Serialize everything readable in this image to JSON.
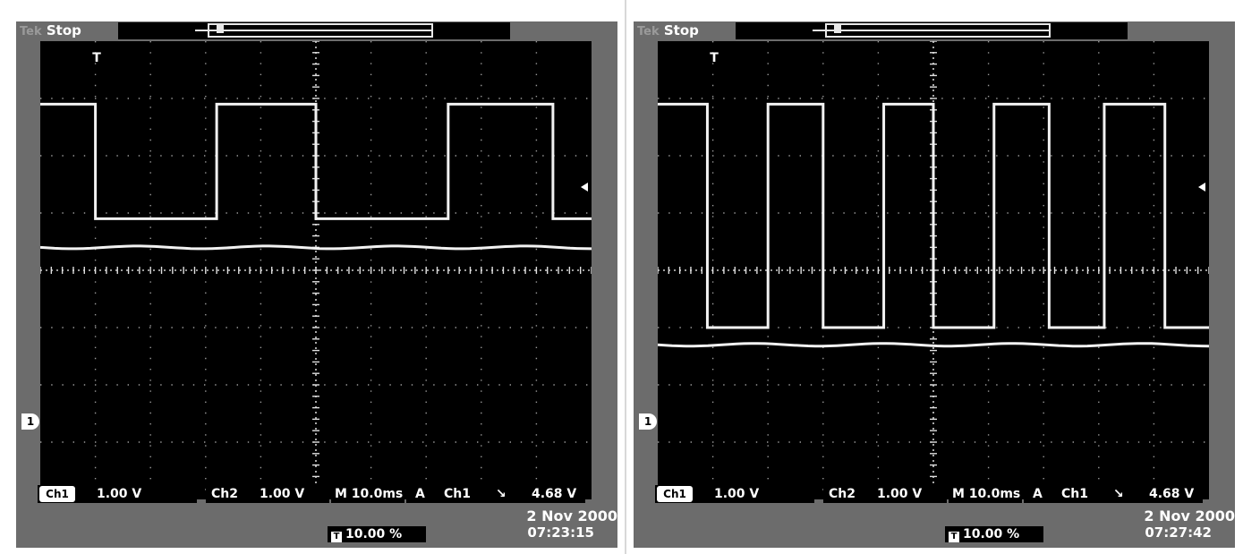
{
  "scopes": [
    {
      "brand": "Tek",
      "run_state": "Stop",
      "ch1_label": "Ch1",
      "ch1_scale": "1.00 V",
      "ch2_label": "Ch2",
      "ch2_scale": "1.00 V",
      "timebase": "M 10.0ms",
      "trigger_mode": "A",
      "trigger_source": "Ch1",
      "trigger_level": "4.68 V",
      "trigger_position": "10.00 %",
      "date": "2 Nov 2000",
      "time": "07:23:15",
      "ch1_marker": "1",
      "trigger_marker": "T",
      "ch1_edges": [
        1.0,
        3.2,
        5.0,
        7.4,
        9.3
      ],
      "ch1_high_div": 2.9,
      "ch1_low_div": 0.9,
      "ch2_level_div": 0.4
    },
    {
      "brand": "Tek",
      "run_state": "Stop",
      "ch1_label": "Ch1",
      "ch1_scale": "1.00 V",
      "ch2_label": "Ch2",
      "ch2_scale": "1.00 V",
      "timebase": "M 10.0ms",
      "trigger_mode": "A",
      "trigger_source": "Ch1",
      "trigger_level": "4.68 V",
      "trigger_position": "10.00 %",
      "date": "2 Nov 2000",
      "time": "07:27:42",
      "ch1_marker": "1",
      "trigger_marker": "T",
      "ch1_edges": [
        0.9,
        2.0,
        3.0,
        4.1,
        5.0,
        6.1,
        7.1,
        8.1,
        9.2
      ],
      "ch1_high_div": 2.9,
      "ch1_low_div": -1.0,
      "ch2_level_div": -1.3
    }
  ]
}
